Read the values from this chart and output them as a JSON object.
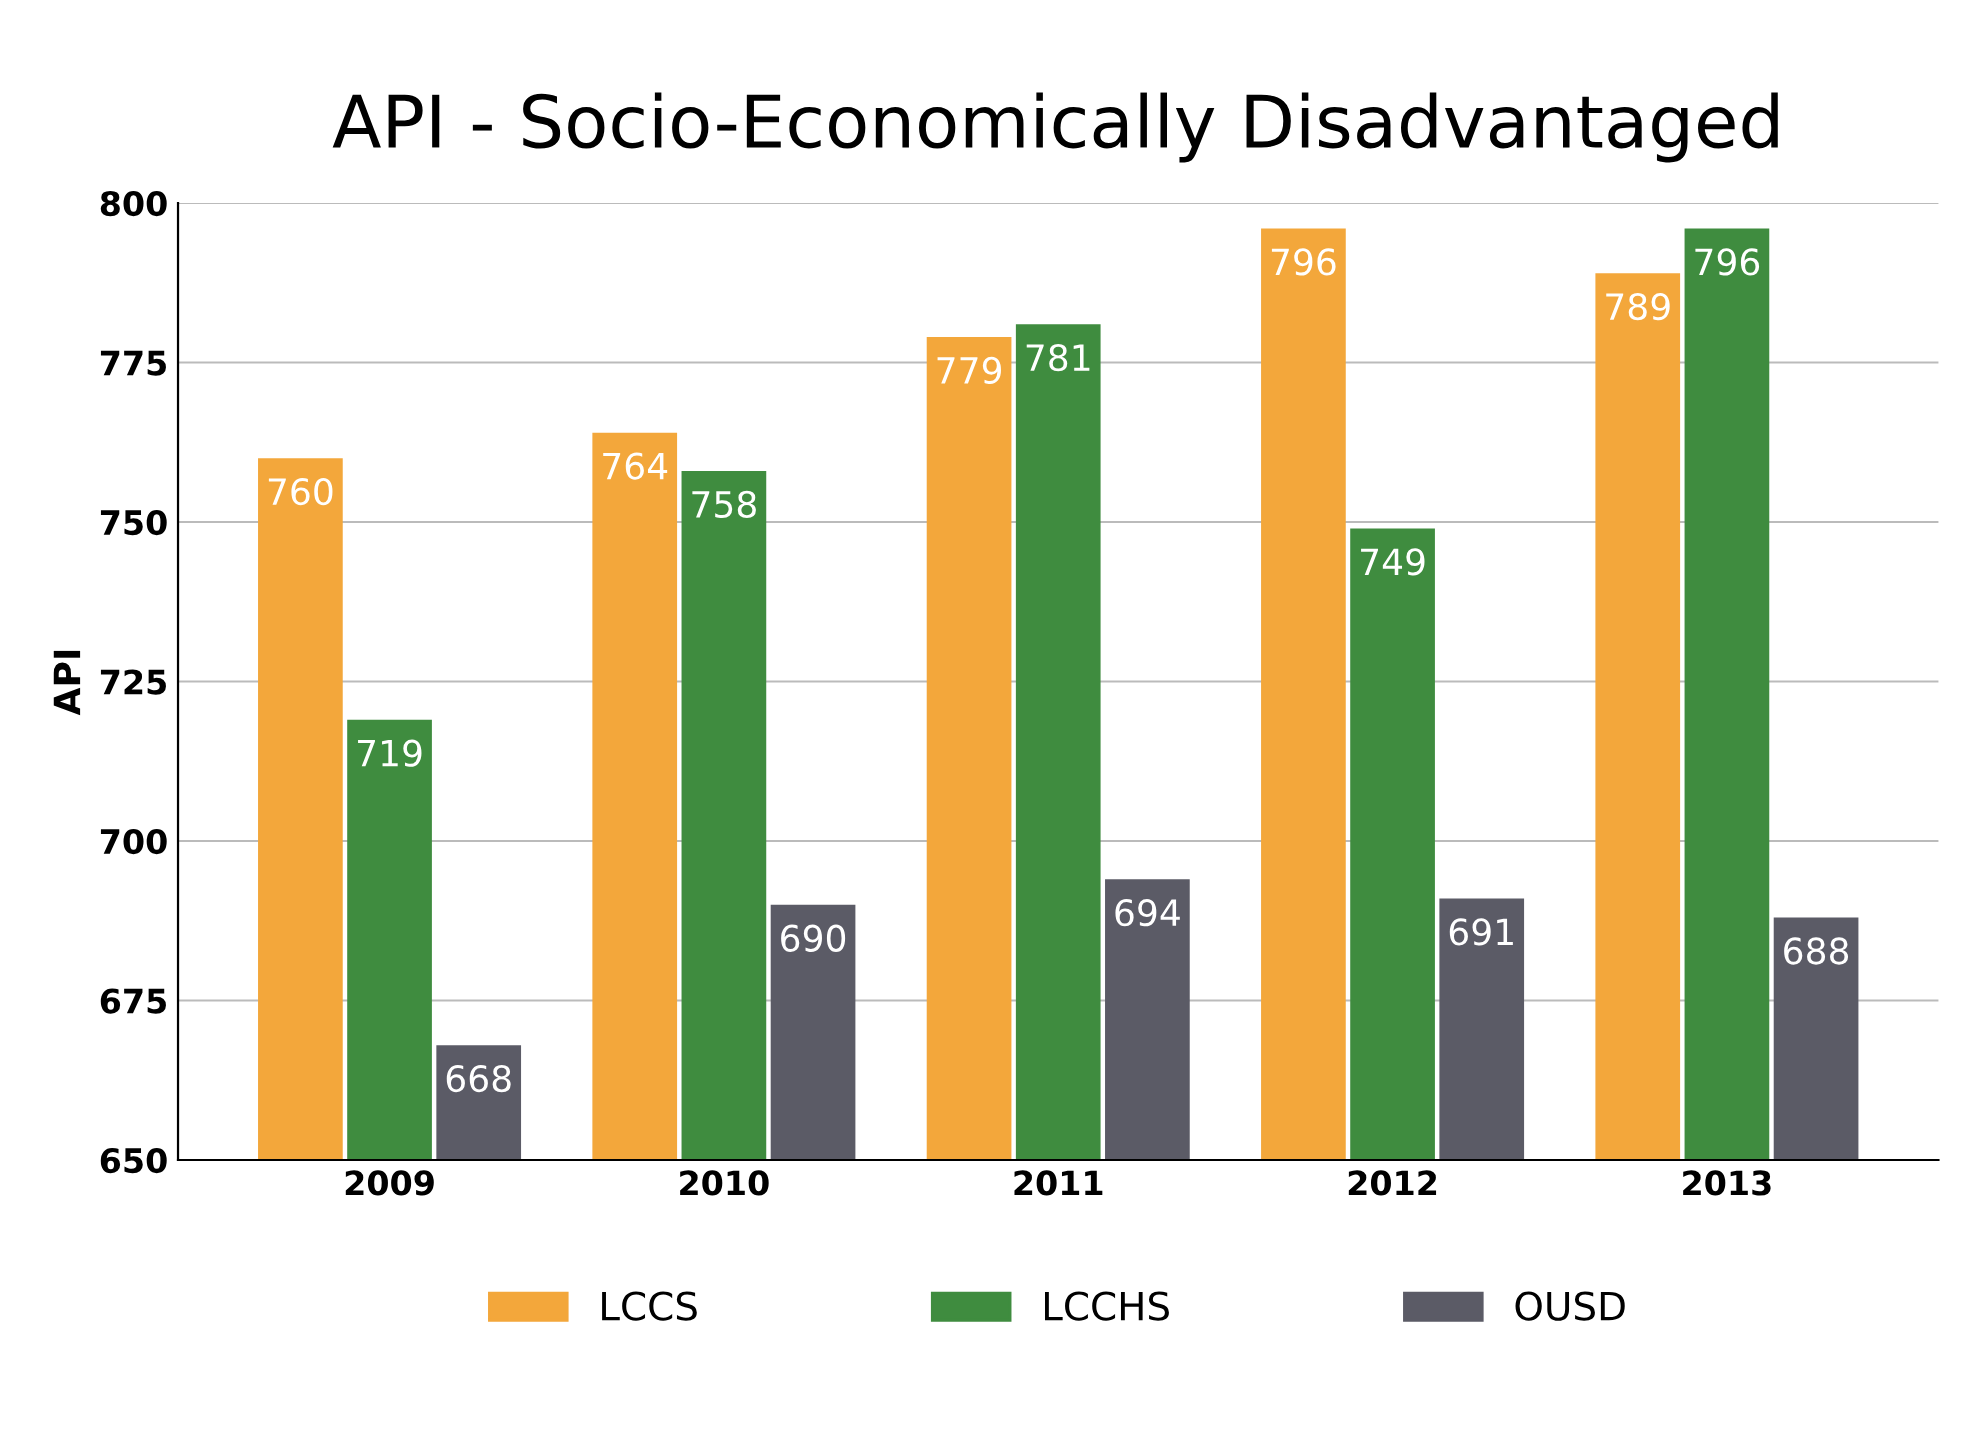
{
  "chart_data": {
    "type": "bar",
    "title": "API - Socio-Economically Disadvantaged",
    "ylabel": "API",
    "categories": [
      "2009",
      "2010",
      "2011",
      "2012",
      "2013"
    ],
    "series": [
      {
        "name": "LCCS",
        "color": "#f3a73b",
        "values": [
          760,
          764,
          779,
          796,
          789
        ]
      },
      {
        "name": "LCCHS",
        "color": "#3f8c3f",
        "values": [
          719,
          758,
          781,
          749,
          796
        ]
      },
      {
        "name": "OUSD",
        "color": "#5b5b66",
        "values": [
          668,
          690,
          694,
          691,
          688
        ]
      }
    ],
    "ylim": [
      650,
      800
    ],
    "yticks": [
      650,
      675,
      700,
      725,
      750,
      775,
      800
    ],
    "grid": "y",
    "legend": "bottom",
    "data_labels": true
  }
}
